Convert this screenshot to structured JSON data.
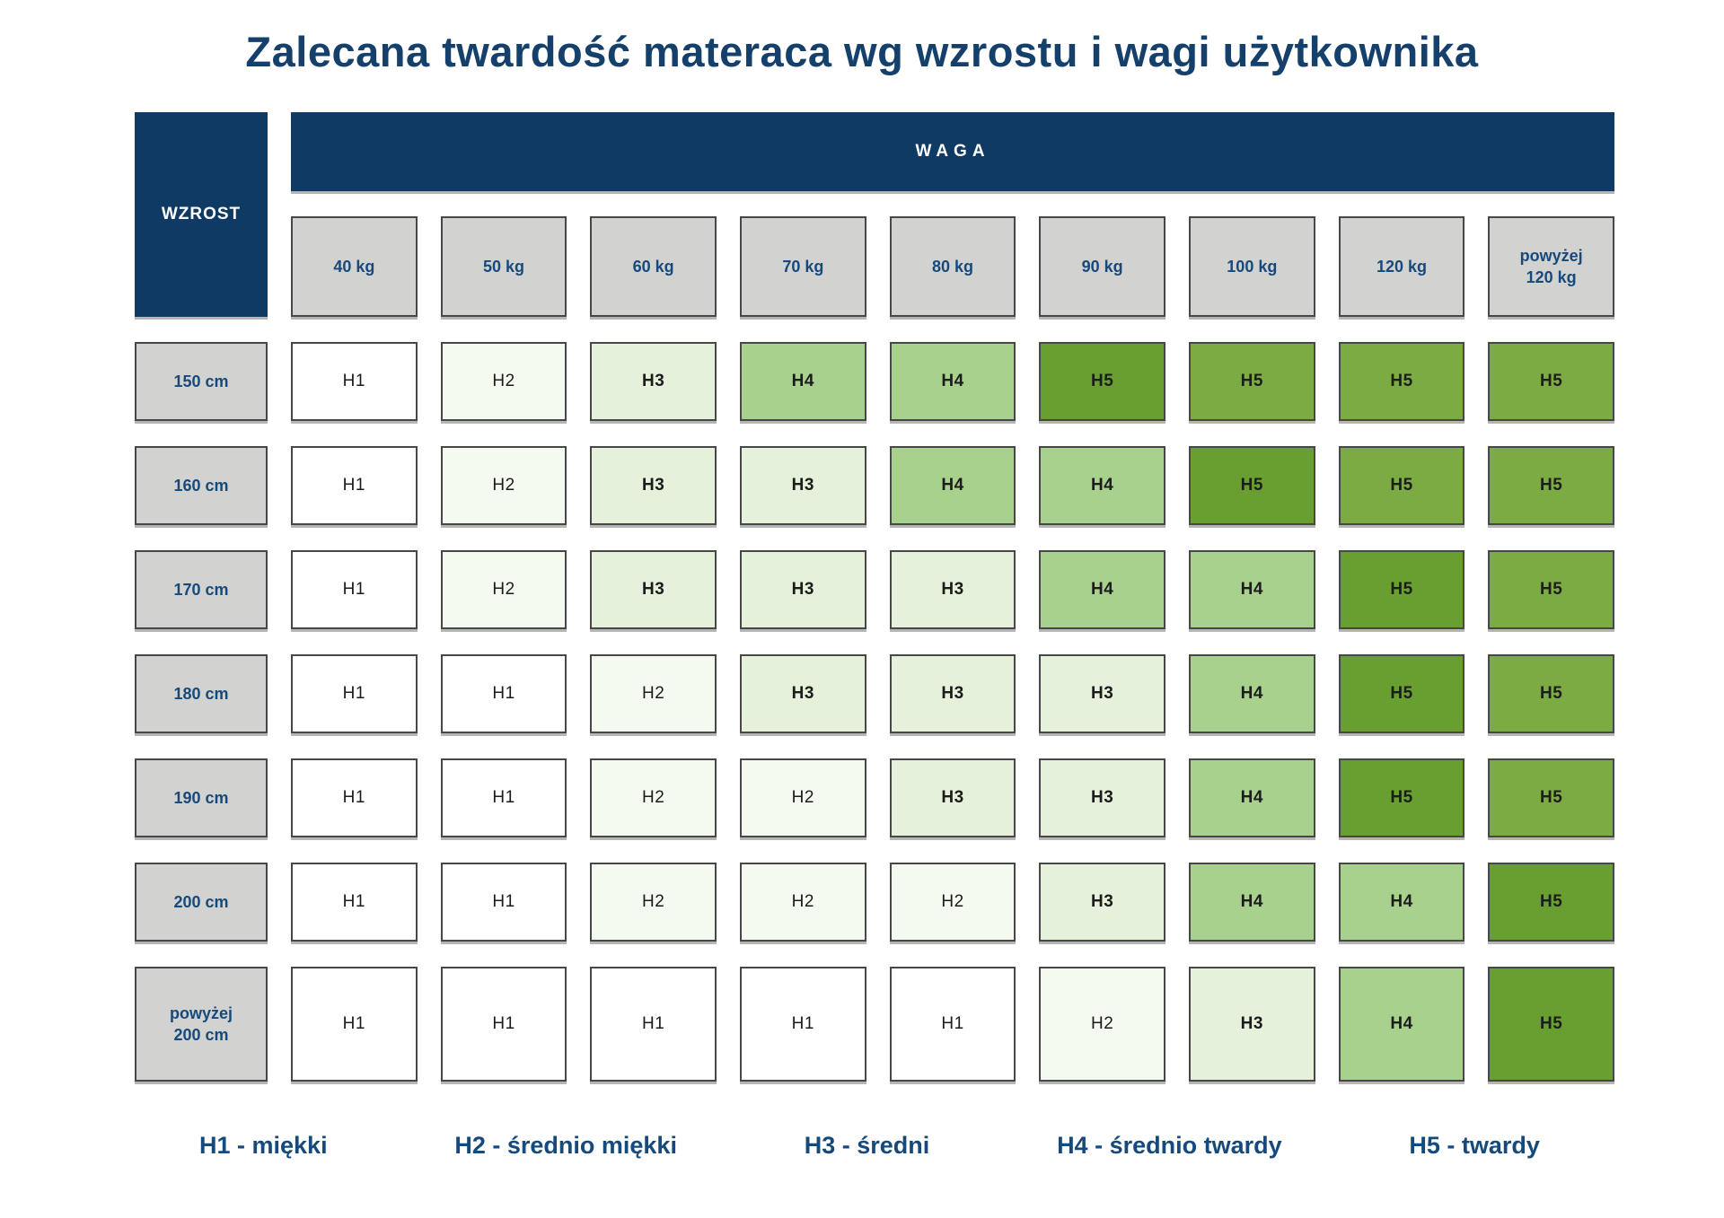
{
  "title": "Zalecana twardość materaca wg wzrostu i wagi użytkownika",
  "colors": {
    "navy_header": "#0e3a64",
    "gray_header": "#d2d2d0",
    "cell_border": "#474747",
    "navy_text": "#164a7c",
    "levels": {
      "H1": {
        "label": "H1",
        "bg": "#ffffff",
        "bold": false
      },
      "H2": {
        "label": "H2",
        "bg": "#f5faf0",
        "bold": false
      },
      "H3": {
        "label": "H3",
        "bg": "#e5f1db",
        "bold": true
      },
      "H4": {
        "label": "H4",
        "bg": "#a9d18e",
        "bold": true
      },
      "H5": {
        "label": "H5",
        "bg": "#7cab43",
        "bold": true
      },
      "H5D": {
        "label": "H5",
        "bg": "#699f31",
        "bold": true
      }
    }
  },
  "table": {
    "corner_label": "WZROST",
    "weight_label": "WAGA",
    "columns": [
      "40 kg",
      "50 kg",
      "60 kg",
      "70 kg",
      "80 kg",
      "90 kg",
      "100 kg",
      "120 kg",
      "powyżej\n120 kg"
    ],
    "rows": [
      {
        "height": "150 cm",
        "cells": [
          "H1",
          "H2",
          "H3",
          "H4",
          "H4",
          "H5D",
          "H5",
          "H5",
          "H5"
        ]
      },
      {
        "height": "160 cm",
        "cells": [
          "H1",
          "H2",
          "H3",
          "H3",
          "H4",
          "H4",
          "H5D",
          "H5",
          "H5"
        ]
      },
      {
        "height": "170 cm",
        "cells": [
          "H1",
          "H2",
          "H3",
          "H3",
          "H3",
          "H4",
          "H4",
          "H5D",
          "H5"
        ]
      },
      {
        "height": "180 cm",
        "cells": [
          "H1",
          "H1",
          "H2",
          "H3",
          "H3",
          "H3",
          "H4",
          "H5D",
          "H5"
        ]
      },
      {
        "height": "190 cm",
        "cells": [
          "H1",
          "H1",
          "H2",
          "H2",
          "H3",
          "H3",
          "H4",
          "H5D",
          "H5"
        ]
      },
      {
        "height": "200 cm",
        "cells": [
          "H1",
          "H1",
          "H2",
          "H2",
          "H2",
          "H3",
          "H4",
          "H4",
          "H5D"
        ]
      },
      {
        "height": "powyżej\n200 cm",
        "cells": [
          "H1",
          "H1",
          "H1",
          "H1",
          "H1",
          "H2",
          "H3",
          "H4",
          "H5D"
        ]
      }
    ]
  },
  "legend": {
    "items": [
      "H1 - miękki",
      "H2 - średnio miękki",
      "H3 - średni",
      "H4 - średnio twardy",
      "H5 - twardy"
    ]
  },
  "chart_data": {
    "type": "heatmap",
    "title": "Zalecana twardość materaca wg wzrostu i wagi użytkownika",
    "xlabel": "WAGA",
    "ylabel": "WZROST",
    "x_categories": [
      "40 kg",
      "50 kg",
      "60 kg",
      "70 kg",
      "80 kg",
      "90 kg",
      "100 kg",
      "120 kg",
      "powyżej 120 kg"
    ],
    "y_categories": [
      "150 cm",
      "160 cm",
      "170 cm",
      "180 cm",
      "190 cm",
      "200 cm",
      "powyżej 200 cm"
    ],
    "values": [
      [
        "H1",
        "H2",
        "H3",
        "H4",
        "H4",
        "H5",
        "H5",
        "H5",
        "H5"
      ],
      [
        "H1",
        "H2",
        "H3",
        "H3",
        "H4",
        "H4",
        "H5",
        "H5",
        "H5"
      ],
      [
        "H1",
        "H2",
        "H3",
        "H3",
        "H3",
        "H4",
        "H4",
        "H5",
        "H5"
      ],
      [
        "H1",
        "H1",
        "H2",
        "H3",
        "H3",
        "H3",
        "H4",
        "H5",
        "H5"
      ],
      [
        "H1",
        "H1",
        "H2",
        "H2",
        "H3",
        "H3",
        "H4",
        "H5",
        "H5"
      ],
      [
        "H1",
        "H1",
        "H2",
        "H2",
        "H2",
        "H3",
        "H4",
        "H4",
        "H5"
      ],
      [
        "H1",
        "H1",
        "H1",
        "H1",
        "H1",
        "H2",
        "H3",
        "H4",
        "H5"
      ]
    ],
    "legend_entries": [
      "H1 - miękki",
      "H2 - średnio miękki",
      "H3 - średni",
      "H4 - średnio twardy",
      "H5 - twardy"
    ],
    "color_scale": {
      "H1": "#ffffff",
      "H2": "#f5faf0",
      "H3": "#e5f1db",
      "H4": "#a9d18e",
      "H5": "#7cab43"
    }
  }
}
